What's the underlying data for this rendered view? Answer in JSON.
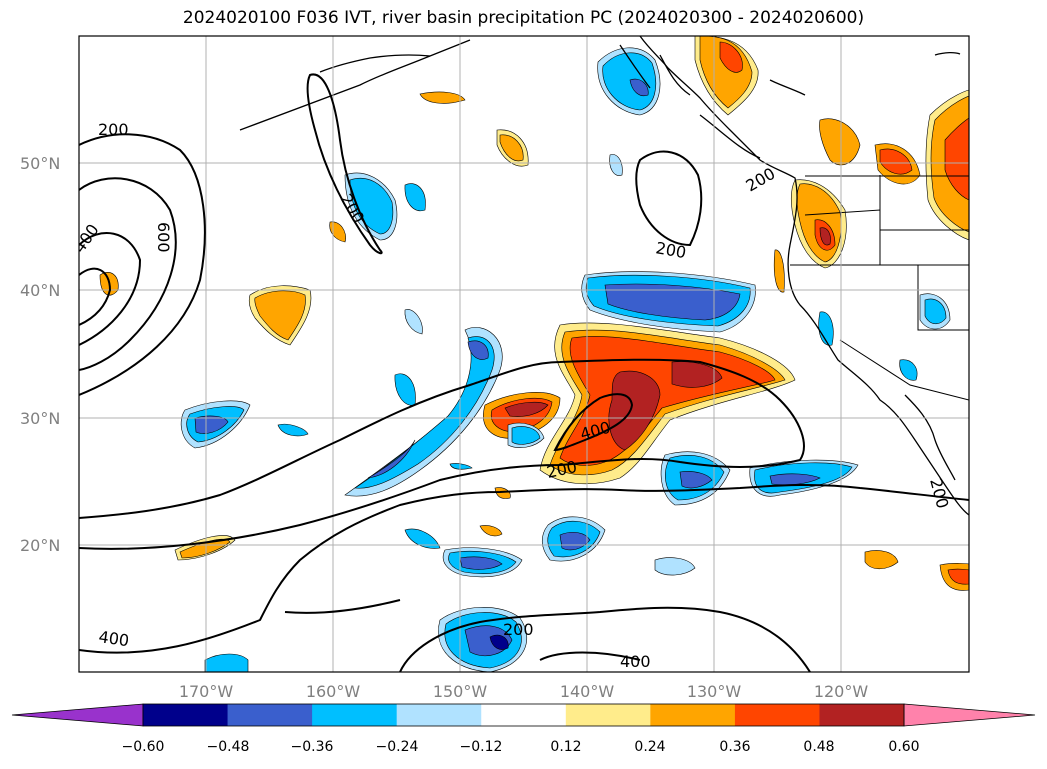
{
  "title": "2024020100 F036 IVT, river basin precipitation PC (2024020300 - 2024020600)",
  "lat_labels": [
    "50°N",
    "40°N",
    "30°N",
    "20°N"
  ],
  "lon_labels": [
    "170°W",
    "160°W",
    "150°W",
    "140°W",
    "130°W",
    "120°W"
  ],
  "colorbar": {
    "ticks": [
      "−0.60",
      "−0.48",
      "−0.36",
      "−0.24",
      "−0.12",
      "0.12",
      "0.24",
      "0.36",
      "0.48",
      "0.60"
    ],
    "colors": [
      "#9932cc",
      "#00008b",
      "#3a5fcd",
      "#00bfff",
      "#b0e2ff",
      "#ffffff",
      "#ffec8b",
      "#ffa500",
      "#ff4500",
      "#b22222",
      "#ff82ab"
    ]
  },
  "contour_labels": [
    "200",
    "200",
    "400",
    "600",
    "200",
    "200",
    "200",
    "400",
    "200",
    "200",
    "400",
    "400",
    "200"
  ]
}
